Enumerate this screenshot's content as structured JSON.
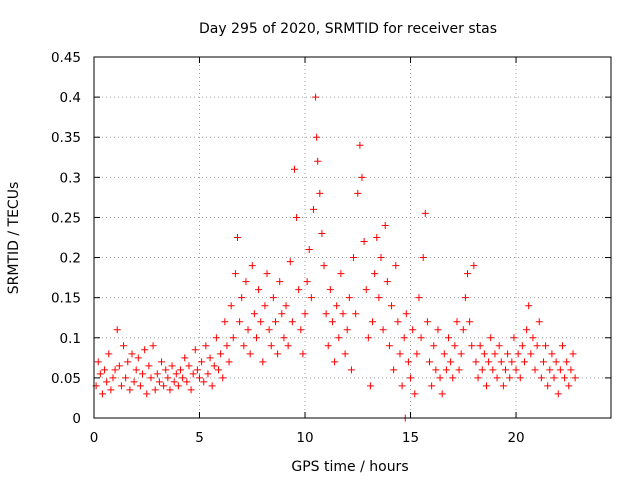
{
  "chart_data": {
    "type": "scatter",
    "title": "Day 295 of 2020, SRMTID for receiver stas",
    "xlabel": "GPS time / hours",
    "ylabel": "SRMTID / TECUs",
    "xlim": [
      0,
      24.5
    ],
    "ylim": [
      0,
      0.45
    ],
    "xticks": [
      0,
      5,
      10,
      15,
      20
    ],
    "xtick_labels": [
      "0",
      "5",
      "10",
      "15",
      "20"
    ],
    "yticks": [
      0,
      0.05,
      0.1,
      0.15,
      0.2,
      0.25,
      0.3,
      0.35,
      0.4,
      0.45
    ],
    "ytick_labels": [
      "0",
      "0.05",
      "0.1",
      "0.15",
      "0.2",
      "0.25",
      "0.3",
      "0.35",
      "0.4",
      "0.45"
    ],
    "grid": true,
    "marker": "plus",
    "color": "#ff0000",
    "series": [
      {
        "name": "stas",
        "points": [
          [
            0.1,
            0.04
          ],
          [
            0.2,
            0.07
          ],
          [
            0.3,
            0.055
          ],
          [
            0.4,
            0.03
          ],
          [
            0.5,
            0.06
          ],
          [
            0.6,
            0.045
          ],
          [
            0.7,
            0.08
          ],
          [
            0.8,
            0.035
          ],
          [
            0.9,
            0.05
          ],
          [
            1.0,
            0.06
          ],
          [
            1.1,
            0.11
          ],
          [
            1.2,
            0.065
          ],
          [
            1.3,
            0.04
          ],
          [
            1.4,
            0.09
          ],
          [
            1.5,
            0.05
          ],
          [
            1.6,
            0.07
          ],
          [
            1.7,
            0.035
          ],
          [
            1.8,
            0.08
          ],
          [
            1.9,
            0.045
          ],
          [
            2.0,
            0.06
          ],
          [
            2.1,
            0.075
          ],
          [
            2.2,
            0.04
          ],
          [
            2.3,
            0.055
          ],
          [
            2.4,
            0.085
          ],
          [
            2.5,
            0.03
          ],
          [
            2.6,
            0.065
          ],
          [
            2.7,
            0.05
          ],
          [
            2.8,
            0.09
          ],
          [
            2.9,
            0.035
          ],
          [
            3.0,
            0.055
          ],
          [
            3.1,
            0.045
          ],
          [
            3.2,
            0.07
          ],
          [
            3.3,
            0.04
          ],
          [
            3.4,
            0.06
          ],
          [
            3.5,
            0.05
          ],
          [
            3.6,
            0.035
          ],
          [
            3.7,
            0.065
          ],
          [
            3.8,
            0.045
          ],
          [
            3.9,
            0.055
          ],
          [
            4.0,
            0.04
          ],
          [
            4.1,
            0.06
          ],
          [
            4.2,
            0.05
          ],
          [
            4.3,
            0.075
          ],
          [
            4.4,
            0.045
          ],
          [
            4.5,
            0.065
          ],
          [
            4.6,
            0.035
          ],
          [
            4.7,
            0.055
          ],
          [
            4.8,
            0.085
          ],
          [
            4.9,
            0.06
          ],
          [
            5.0,
            0.05
          ],
          [
            5.1,
            0.07
          ],
          [
            5.2,
            0.045
          ],
          [
            5.3,
            0.09
          ],
          [
            5.4,
            0.055
          ],
          [
            5.5,
            0.075
          ],
          [
            5.6,
            0.04
          ],
          [
            5.7,
            0.065
          ],
          [
            5.8,
            0.1
          ],
          [
            5.9,
            0.06
          ],
          [
            6.0,
            0.08
          ],
          [
            6.1,
            0.05
          ],
          [
            6.2,
            0.12
          ],
          [
            6.3,
            0.09
          ],
          [
            6.4,
            0.07
          ],
          [
            6.5,
            0.14
          ],
          [
            6.6,
            0.1
          ],
          [
            6.7,
            0.18
          ],
          [
            6.8,
            0.225
          ],
          [
            6.9,
            0.12
          ],
          [
            7.0,
            0.15
          ],
          [
            7.1,
            0.09
          ],
          [
            7.2,
            0.17
          ],
          [
            7.3,
            0.11
          ],
          [
            7.4,
            0.08
          ],
          [
            7.5,
            0.19
          ],
          [
            7.6,
            0.13
          ],
          [
            7.7,
            0.1
          ],
          [
            7.8,
            0.16
          ],
          [
            7.9,
            0.12
          ],
          [
            8.0,
            0.07
          ],
          [
            8.1,
            0.14
          ],
          [
            8.2,
            0.18
          ],
          [
            8.3,
            0.11
          ],
          [
            8.4,
            0.09
          ],
          [
            8.5,
            0.15
          ],
          [
            8.6,
            0.12
          ],
          [
            8.7,
            0.08
          ],
          [
            8.8,
            0.17
          ],
          [
            8.9,
            0.13
          ],
          [
            9.0,
            0.1
          ],
          [
            9.1,
            0.14
          ],
          [
            9.2,
            0.09
          ],
          [
            9.3,
            0.195
          ],
          [
            9.4,
            0.12
          ],
          [
            9.5,
            0.31
          ],
          [
            9.6,
            0.25
          ],
          [
            9.7,
            0.16
          ],
          [
            9.8,
            0.11
          ],
          [
            9.9,
            0.08
          ],
          [
            10.0,
            0.13
          ],
          [
            10.1,
            0.17
          ],
          [
            10.2,
            0.21
          ],
          [
            10.3,
            0.15
          ],
          [
            10.4,
            0.26
          ],
          [
            10.5,
            0.4
          ],
          [
            10.55,
            0.35
          ],
          [
            10.6,
            0.32
          ],
          [
            10.7,
            0.28
          ],
          [
            10.8,
            0.23
          ],
          [
            10.9,
            0.19
          ],
          [
            11.0,
            0.13
          ],
          [
            11.1,
            0.09
          ],
          [
            11.2,
            0.16
          ],
          [
            11.3,
            0.12
          ],
          [
            11.4,
            0.07
          ],
          [
            11.5,
            0.14
          ],
          [
            11.6,
            0.1
          ],
          [
            11.7,
            0.18
          ],
          [
            11.8,
            0.13
          ],
          [
            11.9,
            0.08
          ],
          [
            12.0,
            0.11
          ],
          [
            12.1,
            0.15
          ],
          [
            12.2,
            0.06
          ],
          [
            12.3,
            0.2
          ],
          [
            12.4,
            0.13
          ],
          [
            12.5,
            0.28
          ],
          [
            12.6,
            0.34
          ],
          [
            12.7,
            0.3
          ],
          [
            12.8,
            0.22
          ],
          [
            12.9,
            0.16
          ],
          [
            13.0,
            0.1
          ],
          [
            13.1,
            0.04
          ],
          [
            13.2,
            0.12
          ],
          [
            13.3,
            0.18
          ],
          [
            13.4,
            0.225
          ],
          [
            13.5,
            0.15
          ],
          [
            13.6,
            0.2
          ],
          [
            13.7,
            0.11
          ],
          [
            13.8,
            0.24
          ],
          [
            13.9,
            0.17
          ],
          [
            14.0,
            0.09
          ],
          [
            14.1,
            0.14
          ],
          [
            14.2,
            0.06
          ],
          [
            14.3,
            0.19
          ],
          [
            14.4,
            0.12
          ],
          [
            14.5,
            0.08
          ],
          [
            14.6,
            0.04
          ],
          [
            14.7,
            0.1
          ],
          [
            14.75,
            0.0
          ],
          [
            14.8,
            0.13
          ],
          [
            14.9,
            0.07
          ],
          [
            15.0,
            0.05
          ],
          [
            15.1,
            0.11
          ],
          [
            15.2,
            0.03
          ],
          [
            15.3,
            0.08
          ],
          [
            15.4,
            0.15
          ],
          [
            15.5,
            0.1
          ],
          [
            15.6,
            0.2
          ],
          [
            15.7,
            0.255
          ],
          [
            15.8,
            0.12
          ],
          [
            15.9,
            0.07
          ],
          [
            16.0,
            0.04
          ],
          [
            16.1,
            0.09
          ],
          [
            16.2,
            0.06
          ],
          [
            16.3,
            0.11
          ],
          [
            16.4,
            0.05
          ],
          [
            16.5,
            0.03
          ],
          [
            16.6,
            0.08
          ],
          [
            16.7,
            0.06
          ],
          [
            16.8,
            0.1
          ],
          [
            16.9,
            0.07
          ],
          [
            17.0,
            0.05
          ],
          [
            17.1,
            0.09
          ],
          [
            17.2,
            0.12
          ],
          [
            17.3,
            0.06
          ],
          [
            17.4,
            0.08
          ],
          [
            17.5,
            0.11
          ],
          [
            17.6,
            0.15
          ],
          [
            17.7,
            0.18
          ],
          [
            17.8,
            0.12
          ],
          [
            17.9,
            0.09
          ],
          [
            18.0,
            0.19
          ],
          [
            18.1,
            0.07
          ],
          [
            18.2,
            0.05
          ],
          [
            18.3,
            0.09
          ],
          [
            18.4,
            0.06
          ],
          [
            18.5,
            0.08
          ],
          [
            18.6,
            0.04
          ],
          [
            18.7,
            0.07
          ],
          [
            18.8,
            0.1
          ],
          [
            18.9,
            0.06
          ],
          [
            19.0,
            0.08
          ],
          [
            19.1,
            0.05
          ],
          [
            19.2,
            0.09
          ],
          [
            19.3,
            0.07
          ],
          [
            19.4,
            0.04
          ],
          [
            19.5,
            0.06
          ],
          [
            19.6,
            0.08
          ],
          [
            19.7,
            0.05
          ],
          [
            19.8,
            0.07
          ],
          [
            19.9,
            0.1
          ],
          [
            20.0,
            0.06
          ],
          [
            20.1,
            0.08
          ],
          [
            20.2,
            0.05
          ],
          [
            20.3,
            0.09
          ],
          [
            20.4,
            0.07
          ],
          [
            20.5,
            0.11
          ],
          [
            20.6,
            0.14
          ],
          [
            20.7,
            0.08
          ],
          [
            20.8,
            0.1
          ],
          [
            20.9,
            0.06
          ],
          [
            21.0,
            0.09
          ],
          [
            21.1,
            0.12
          ],
          [
            21.2,
            0.05
          ],
          [
            21.3,
            0.07
          ],
          [
            21.4,
            0.09
          ],
          [
            21.5,
            0.04
          ],
          [
            21.6,
            0.06
          ],
          [
            21.7,
            0.08
          ],
          [
            21.8,
            0.05
          ],
          [
            21.9,
            0.07
          ],
          [
            22.0,
            0.03
          ],
          [
            22.1,
            0.06
          ],
          [
            22.2,
            0.09
          ],
          [
            22.3,
            0.05
          ],
          [
            22.4,
            0.07
          ],
          [
            22.5,
            0.04
          ],
          [
            22.6,
            0.06
          ],
          [
            22.7,
            0.08
          ],
          [
            22.8,
            0.05
          ]
        ]
      }
    ]
  }
}
